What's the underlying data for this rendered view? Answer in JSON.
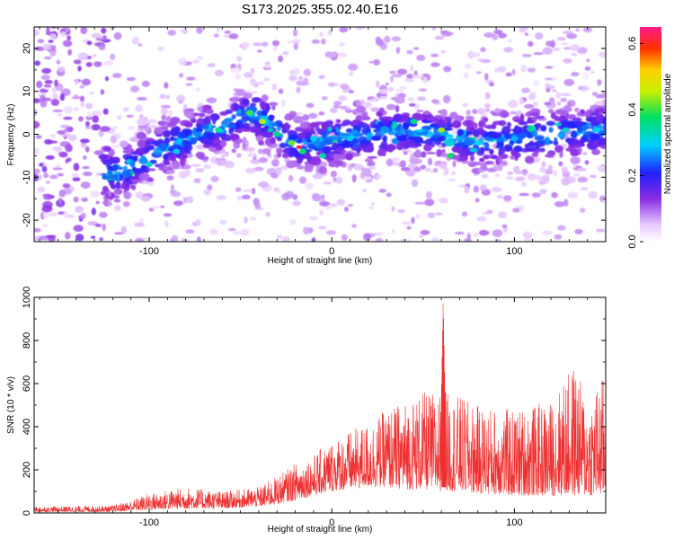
{
  "figure": {
    "title": "S173.2025.355.02.40.E16"
  },
  "colors": {
    "snr_line": "#ee3030",
    "frame": "#000000",
    "background": "#ffffff"
  },
  "chart_data": [
    {
      "type": "heatmap",
      "name": "spectrogram",
      "title": "S173.2025.355.02.40.E16",
      "xlabel": "Height of straight line (km)",
      "ylabel": "Frequency (Hz)",
      "xlim": [
        -163,
        150
      ],
      "ylim": [
        -25,
        25
      ],
      "xticks": [
        -100,
        0,
        100
      ],
      "xtick_labels": [
        "-100",
        "0",
        "100"
      ],
      "yticks": [
        -20,
        -10,
        0,
        10,
        20
      ],
      "ytick_labels": [
        "-20",
        "-10",
        "0",
        "10",
        "20"
      ],
      "colorbar": {
        "label": "Normalized spectral amplitude",
        "range": [
          0,
          0.65
        ],
        "ticks": [
          0.0,
          0.2,
          0.4,
          0.6
        ],
        "tick_labels": [
          "0.0",
          "0.2",
          "0.4",
          "0.6"
        ],
        "colormap": "rainbow (white-violet-blue-cyan-green-yellow-red-magenta)"
      },
      "ridge": {
        "description": "Dominant energy band centered near 0 Hz that bends upward near -40 km and dips near -20 km",
        "x": [
          -115,
          -100,
          -80,
          -60,
          -45,
          -35,
          -25,
          -18,
          -10,
          0,
          20,
          40,
          60,
          80,
          100,
          120,
          145
        ],
        "y_center": [
          -9,
          -5,
          -1,
          2,
          5,
          3,
          -1,
          -3,
          -2,
          -1,
          0,
          1,
          0,
          -2,
          -1,
          0,
          1
        ],
        "peak_amplitude": 0.62,
        "peak_location": {
          "x": -18,
          "y": -3
        }
      }
    },
    {
      "type": "line",
      "name": "snr",
      "title": "",
      "xlabel": "Height of straight line (km)",
      "ylabel": "SNR (10 * v/v)",
      "xlim": [
        -163,
        150
      ],
      "ylim": [
        0,
        1000
      ],
      "xticks": [
        -100,
        0,
        100
      ],
      "xtick_labels": [
        "-100",
        "0",
        "100"
      ],
      "yticks": [
        0,
        200,
        400,
        600,
        800,
        1000
      ],
      "ytick_labels": [
        "0",
        "200",
        "400",
        "600",
        "800",
        "1000"
      ],
      "series": [
        {
          "name": "SNR",
          "color": "#ee3030",
          "envelope_x": [
            -163,
            -120,
            -110,
            -100,
            -80,
            -60,
            -40,
            -30,
            -20,
            -10,
            0,
            10,
            20,
            30,
            40,
            50,
            60,
            61,
            62,
            70,
            80,
            100,
            120,
            133,
            140,
            150
          ],
          "envelope_upper": [
            30,
            35,
            60,
            90,
            120,
            100,
            120,
            170,
            230,
            270,
            340,
            380,
            420,
            480,
            520,
            560,
            560,
            1000,
            560,
            540,
            500,
            480,
            520,
            700,
            520,
            660
          ],
          "envelope_lower": [
            5,
            5,
            10,
            15,
            20,
            20,
            30,
            40,
            60,
            80,
            100,
            110,
            120,
            120,
            110,
            110,
            100,
            100,
            100,
            100,
            90,
            80,
            80,
            80,
            80,
            80
          ]
        }
      ]
    }
  ]
}
